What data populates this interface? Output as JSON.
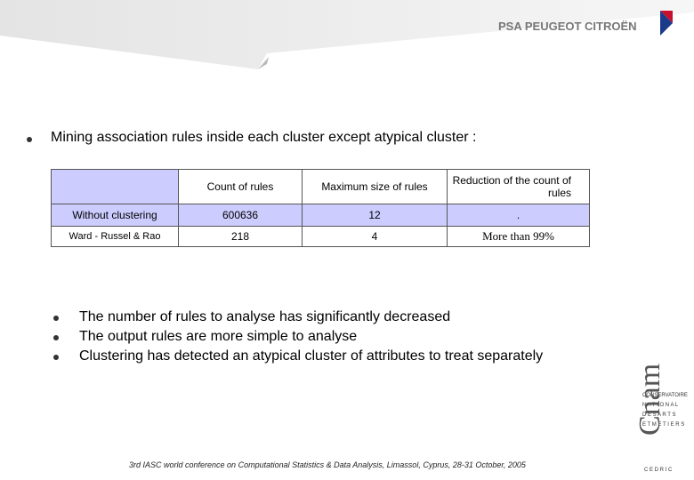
{
  "header": {
    "brand": "PSA PEUGEOT CITROËN"
  },
  "intro": "Mining association rules inside each cluster except atypical cluster :",
  "table": {
    "header": [
      "",
      "Count of rules",
      "Maximum size of rules",
      "Reduction of the count of rules"
    ],
    "rows": [
      [
        "Without clustering",
        "600636",
        "12",
        "."
      ],
      [
        "Ward - Russel & Rao",
        "218",
        "4",
        "More than 99%"
      ]
    ]
  },
  "bullets": [
    "The number of rules to analyse has significantly decreased",
    "The output rules are more simple to analyse",
    "Clustering has detected an atypical cluster of attributes to treat separately"
  ],
  "side_logo": {
    "lines": [
      "CONSERVATOIRE",
      "N A T I O N A L",
      "D E S A R T S",
      "E T M E T I E R S"
    ],
    "mark": "Cnam",
    "lab": "C E D R I C"
  },
  "footer": "3rd IASC world conference on Computational Statistics & Data Analysis, Limassol, Cyprus, 28-31 October, 2005"
}
